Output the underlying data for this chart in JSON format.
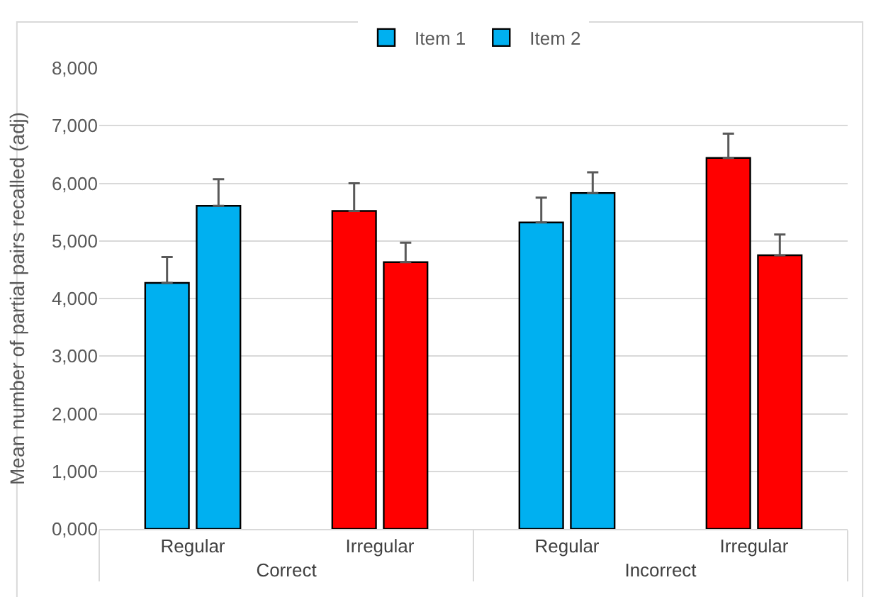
{
  "chart_data": {
    "type": "bar",
    "ylabel": "Mean number of partial pairs recalled (adj)",
    "categories": [
      "Regular",
      "Irregular",
      "Regular",
      "Irregular"
    ],
    "annotations": [
      "Correct",
      "Incorrect"
    ],
    "series": [
      {
        "name": "Item 1",
        "colors": [
          "#00b0f0",
          "#ff0000",
          "#00b0f0",
          "#ff0000"
        ],
        "values": [
          4270,
          5520,
          5320,
          6440
        ],
        "errors": [
          [
            4270,
            4720
          ],
          [
            5520,
            6000
          ],
          [
            5320,
            5750
          ],
          [
            6440,
            6860
          ]
        ]
      },
      {
        "name": "Item 2",
        "colors": [
          "#00b0f0",
          "#ff0000",
          "#00b0f0",
          "#ff0000"
        ],
        "values": [
          5610,
          4630,
          5830,
          4750
        ],
        "errors": [
          [
            5610,
            6070
          ],
          [
            4630,
            4970
          ],
          [
            5830,
            6190
          ],
          [
            4750,
            5110
          ]
        ]
      }
    ],
    "ylim": [
      0,
      8000
    ],
    "yticks": [
      {
        "value": 0,
        "label": "0,000"
      },
      {
        "value": 1000,
        "label": "1,000"
      },
      {
        "value": 2000,
        "label": "2,000"
      },
      {
        "value": 3000,
        "label": "3,000"
      },
      {
        "value": 4000,
        "label": "4,000"
      },
      {
        "value": 5000,
        "label": "5,000"
      },
      {
        "value": 6000,
        "label": "6,000"
      },
      {
        "value": 7000,
        "label": "7,000"
      },
      {
        "value": 8000,
        "label": "8,000"
      }
    ],
    "grid": "y",
    "legend": "top"
  }
}
